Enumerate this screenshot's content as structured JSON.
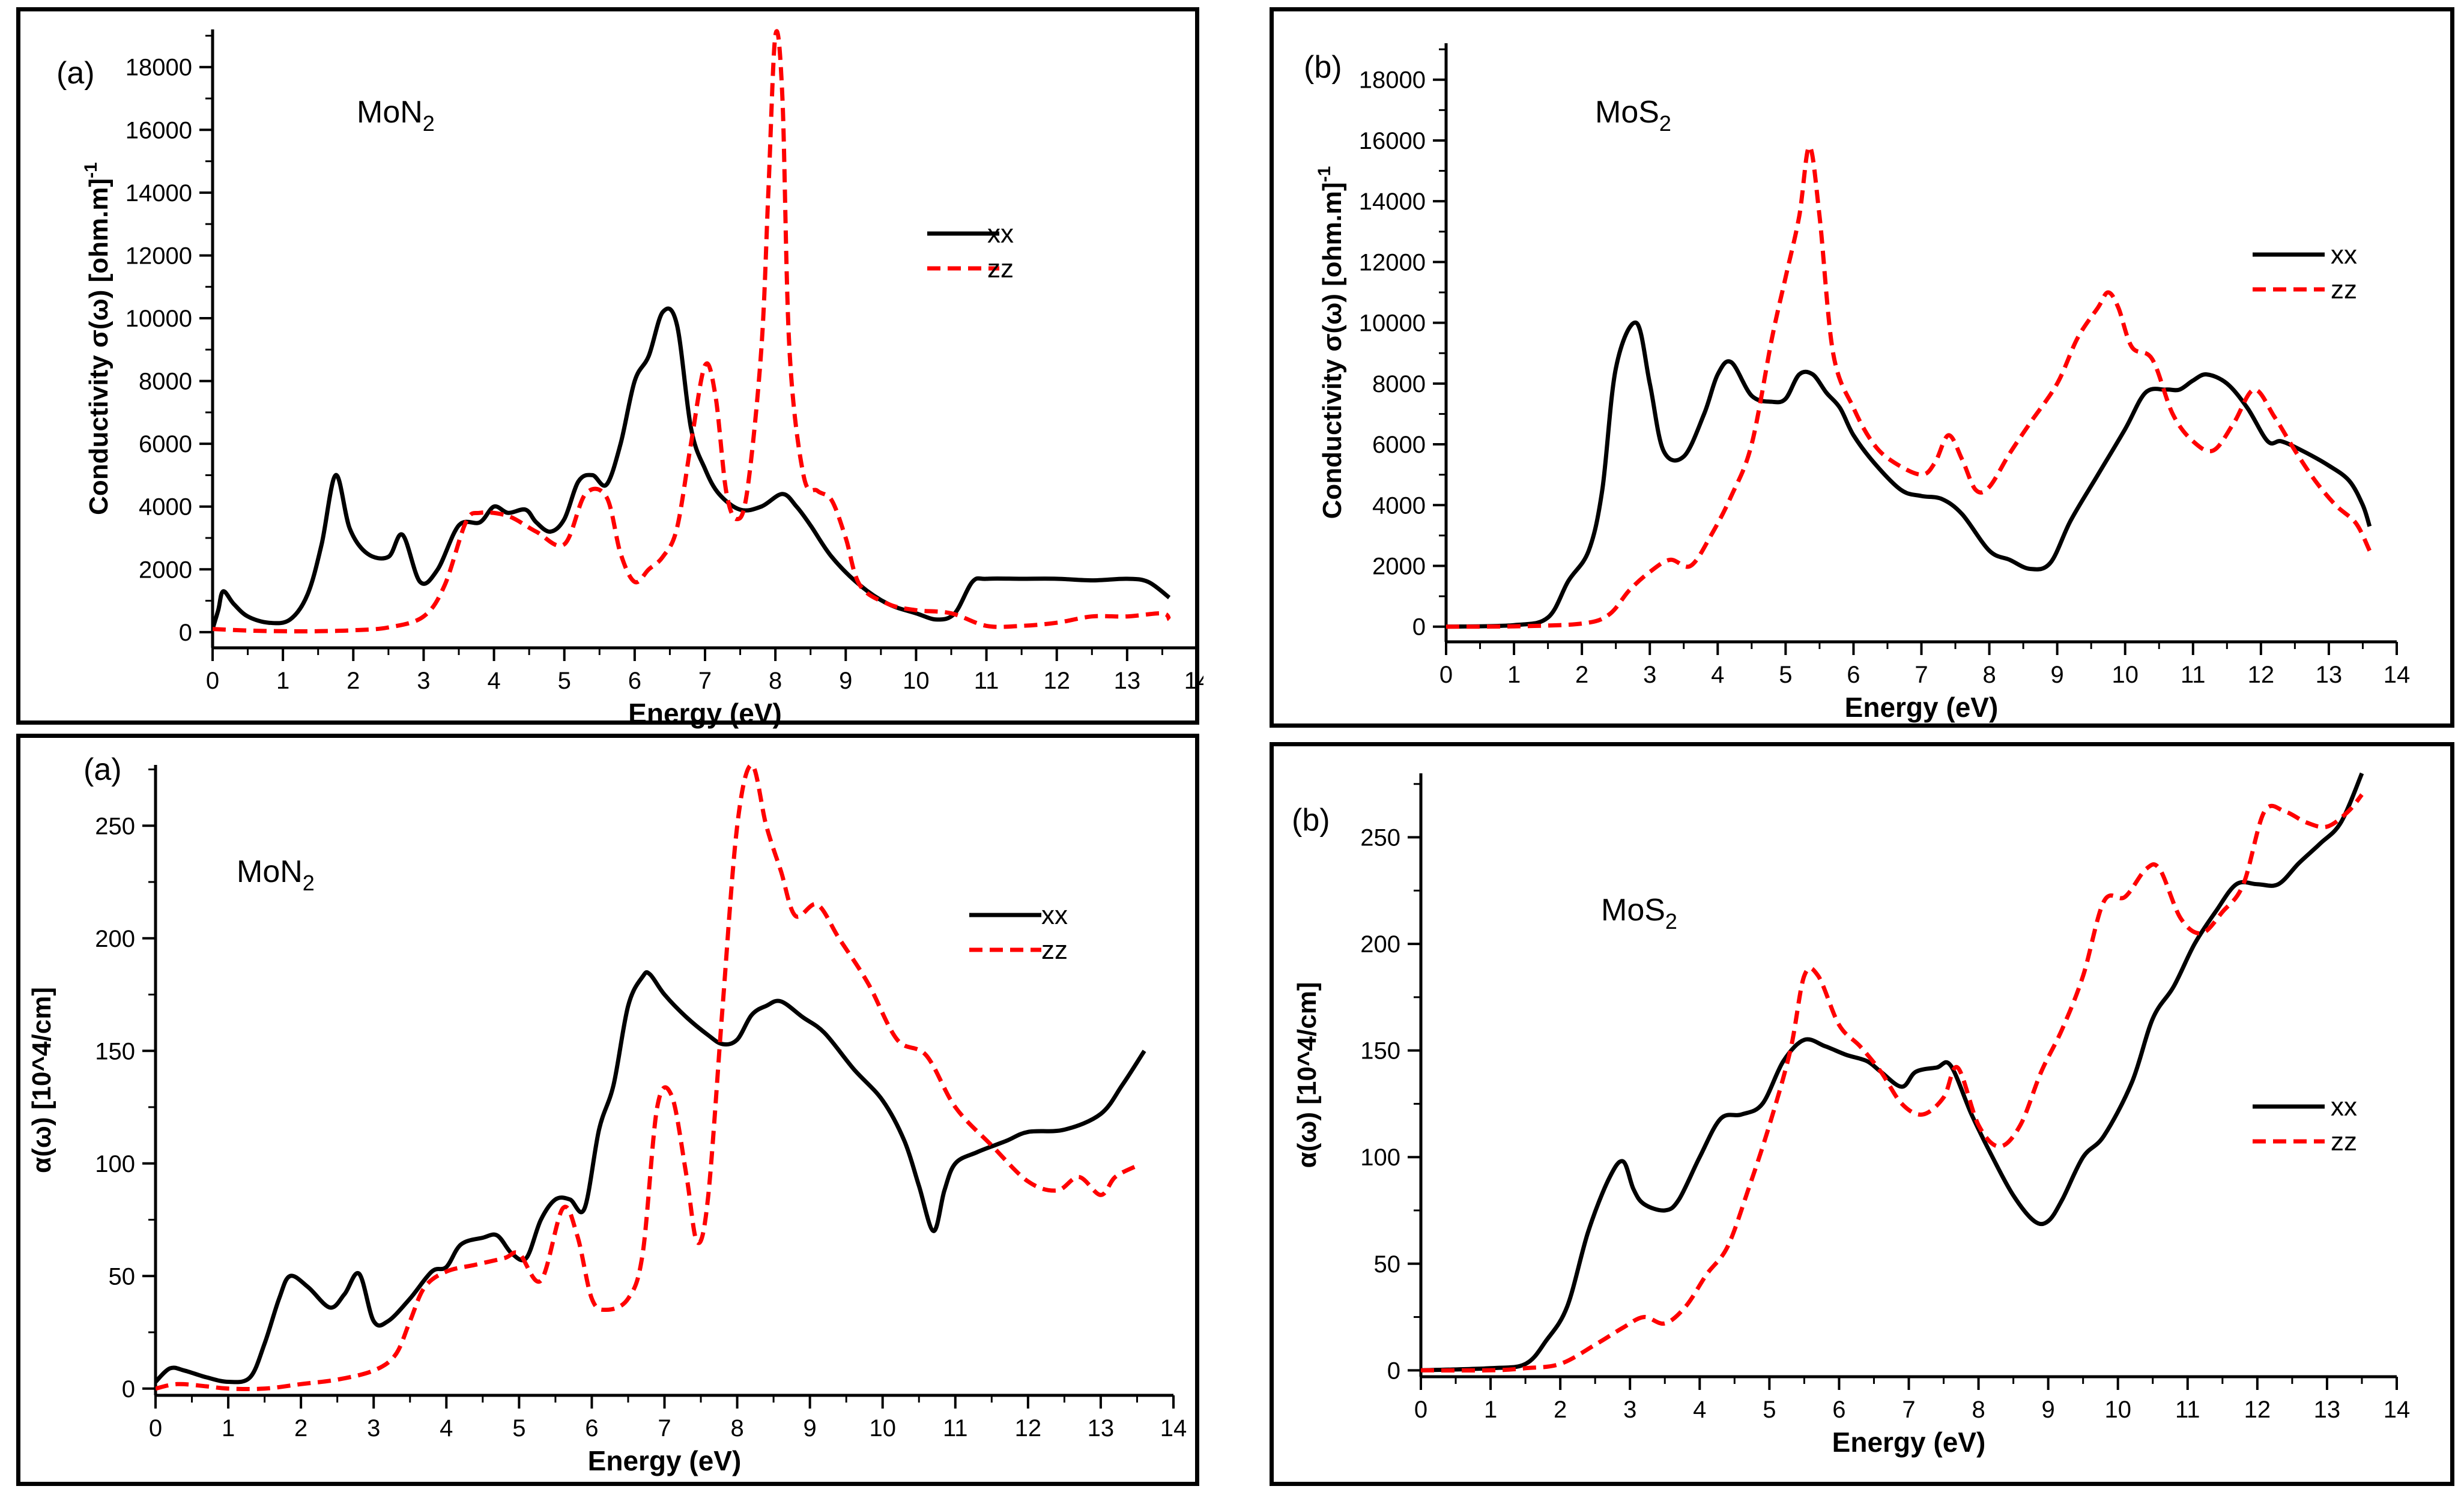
{
  "chart_data": [
    {
      "type": "line",
      "panel_label": "(a)",
      "material": "MoN",
      "material_sub": "2",
      "ylabel": "Conductivity σ(ω) [ohm.m]",
      "ylabel_sup": "-1",
      "xlabel": "Energy (eV)",
      "xlim": [
        0,
        14
      ],
      "ylim": [
        -500,
        19200
      ],
      "xticks": [
        0,
        1,
        2,
        3,
        4,
        5,
        6,
        7,
        8,
        9,
        10,
        11,
        12,
        13,
        14
      ],
      "yticks": [
        0,
        2000,
        4000,
        6000,
        8000,
        10000,
        12000,
        14000,
        16000,
        18000
      ],
      "legend_position": "right",
      "series": [
        {
          "name": "xx",
          "color": "#000000",
          "dash": "solid",
          "x": [
            0,
            0.08,
            0.15,
            0.3,
            0.5,
            0.8,
            1.1,
            1.35,
            1.55,
            1.75,
            1.95,
            2.2,
            2.5,
            2.7,
            2.95,
            3.2,
            3.5,
            3.8,
            4.0,
            4.2,
            4.45,
            4.6,
            4.8,
            5.0,
            5.2,
            5.4,
            5.6,
            5.8,
            6.0,
            6.2,
            6.4,
            6.6,
            6.8,
            7.0,
            7.2,
            7.5,
            7.8,
            8.1,
            8.3,
            8.5,
            8.8,
            9.2,
            9.6,
            10.0,
            10.3,
            10.55,
            10.8,
            11.0,
            11.5,
            12.0,
            12.5,
            13.0,
            13.3,
            13.6
          ],
          "values": [
            100,
            700,
            1300,
            900,
            500,
            300,
            400,
            1200,
            2800,
            5000,
            3300,
            2500,
            2400,
            3100,
            1600,
            2000,
            3400,
            3500,
            4000,
            3800,
            3900,
            3500,
            3200,
            3600,
            4800,
            5000,
            4700,
            6000,
            8000,
            8800,
            10200,
            9800,
            6500,
            5200,
            4400,
            3900,
            4000,
            4400,
            4000,
            3400,
            2400,
            1500,
            900,
            600,
            400,
            600,
            1600,
            1700,
            1700,
            1700,
            1650,
            1700,
            1600,
            1100
          ]
        },
        {
          "name": "zz",
          "color": "#ff0000",
          "dash": "dashed",
          "x": [
            0,
            0.5,
            1.0,
            1.5,
            2.0,
            2.5,
            3.0,
            3.3,
            3.6,
            3.8,
            4.2,
            4.6,
            5.0,
            5.3,
            5.6,
            5.8,
            6.0,
            6.2,
            6.4,
            6.6,
            6.8,
            7.0,
            7.15,
            7.3,
            7.45,
            7.6,
            7.8,
            7.9,
            8.0,
            8.1,
            8.2,
            8.4,
            8.6,
            8.8,
            9.0,
            9.2,
            9.6,
            10.0,
            10.5,
            11.0,
            11.5,
            12.0,
            12.5,
            13.0,
            13.5,
            13.6
          ],
          "values": [
            100,
            50,
            30,
            30,
            60,
            150,
            500,
            1500,
            3500,
            3800,
            3700,
            3200,
            2800,
            4400,
            4300,
            2500,
            1600,
            2000,
            2400,
            3300,
            6000,
            8500,
            7500,
            4500,
            3600,
            4500,
            9000,
            14000,
            19000,
            17000,
            9000,
            5000,
            4500,
            4200,
            3000,
            1500,
            900,
            700,
            600,
            200,
            200,
            300,
            500,
            500,
            600,
            400
          ]
        }
      ]
    },
    {
      "type": "line",
      "panel_label": "(b)",
      "material": "MoS",
      "material_sub": "2",
      "ylabel": "Conductivity σ(ω) [ohm.m]",
      "ylabel_sup": "-1",
      "xlabel": "Energy (eV)",
      "xlim": [
        0,
        14
      ],
      "ylim": [
        -500,
        19200
      ],
      "xticks": [
        0,
        1,
        2,
        3,
        4,
        5,
        6,
        7,
        8,
        9,
        10,
        11,
        12,
        13,
        14
      ],
      "yticks": [
        0,
        2000,
        4000,
        6000,
        8000,
        10000,
        12000,
        14000,
        16000,
        18000
      ],
      "legend_position": "right",
      "series": [
        {
          "name": "xx",
          "color": "#000000",
          "dash": "solid",
          "x": [
            0,
            1.0,
            1.5,
            1.8,
            2.1,
            2.3,
            2.5,
            2.8,
            3.0,
            3.2,
            3.5,
            3.8,
            4.0,
            4.2,
            4.5,
            4.8,
            5.0,
            5.2,
            5.4,
            5.6,
            5.8,
            6.0,
            6.3,
            6.7,
            7.0,
            7.3,
            7.6,
            8.0,
            8.3,
            8.6,
            8.9,
            9.2,
            9.6,
            10.0,
            10.3,
            10.6,
            10.8,
            11.0,
            11.2,
            11.5,
            11.8,
            12.1,
            12.3,
            12.6,
            13.0,
            13.3,
            13.5,
            13.6
          ],
          "values": [
            0,
            50,
            300,
            1500,
            2500,
            4500,
            8500,
            10000,
            8000,
            5800,
            5600,
            7000,
            8300,
            8700,
            7600,
            7400,
            7500,
            8300,
            8300,
            7700,
            7200,
            6300,
            5400,
            4500,
            4300,
            4200,
            3700,
            2500,
            2200,
            1900,
            2100,
            3500,
            5000,
            6500,
            7700,
            7800,
            7800,
            8100,
            8300,
            8000,
            7200,
            6100,
            6100,
            5800,
            5300,
            4800,
            4000,
            3300
          ]
        },
        {
          "name": "zz",
          "color": "#ff0000",
          "dash": "dashed",
          "x": [
            0,
            1.0,
            2.0,
            2.4,
            2.7,
            3.0,
            3.3,
            3.6,
            3.9,
            4.2,
            4.5,
            4.8,
            5.0,
            5.2,
            5.35,
            5.5,
            5.7,
            6.0,
            6.3,
            6.6,
            7.0,
            7.2,
            7.4,
            7.6,
            7.8,
            8.0,
            8.3,
            8.6,
            9.0,
            9.3,
            9.6,
            9.75,
            9.9,
            10.1,
            10.4,
            10.7,
            11.0,
            11.3,
            11.6,
            11.9,
            12.2,
            12.5,
            12.8,
            13.1,
            13.4,
            13.6
          ],
          "values": [
            0,
            10,
            100,
            400,
            1200,
            1800,
            2200,
            2000,
            3000,
            4300,
            6000,
            9500,
            11500,
            13500,
            15800,
            13500,
            9000,
            7200,
            6000,
            5400,
            5000,
            5400,
            6300,
            5500,
            4500,
            4600,
            5700,
            6700,
            8000,
            9500,
            10500,
            11000,
            10500,
            9200,
            8800,
            7000,
            6100,
            5800,
            6700,
            7800,
            6900,
            5800,
            4800,
            4000,
            3400,
            2500
          ]
        }
      ]
    },
    {
      "type": "line",
      "panel_label": "(a)",
      "material": "MoN",
      "material_sub": "2",
      "ylabel": "α(ω) [10^4/cm]",
      "xlabel": "Energy (eV)",
      "xlim": [
        0,
        14
      ],
      "ylim": [
        -3,
        277
      ],
      "xticks": [
        0,
        1,
        2,
        3,
        4,
        5,
        6,
        7,
        8,
        9,
        10,
        11,
        12,
        13,
        14
      ],
      "yticks": [
        0,
        50,
        100,
        150,
        200,
        250
      ],
      "legend_position": "right",
      "series": [
        {
          "name": "xx",
          "color": "#000000",
          "dash": "solid",
          "x": [
            0,
            0.2,
            0.4,
            0.7,
            1.0,
            1.3,
            1.5,
            1.7,
            1.85,
            2.1,
            2.4,
            2.6,
            2.8,
            3.0,
            3.2,
            3.5,
            3.8,
            4.0,
            4.2,
            4.5,
            4.7,
            4.9,
            5.1,
            5.3,
            5.5,
            5.7,
            5.9,
            6.1,
            6.3,
            6.5,
            6.7,
            6.8,
            7.0,
            7.3,
            7.6,
            7.8,
            8.0,
            8.2,
            8.4,
            8.6,
            8.9,
            9.2,
            9.6,
            10.0,
            10.3,
            10.5,
            10.7,
            10.85,
            11.0,
            11.3,
            11.7,
            12.0,
            12.5,
            13.0,
            13.3,
            13.6
          ],
          "values": [
            3,
            9,
            8,
            5,
            3,
            5,
            20,
            40,
            50,
            45,
            36,
            42,
            51,
            30,
            30,
            40,
            52,
            54,
            64,
            67,
            68,
            60,
            58,
            75,
            84,
            84,
            80,
            115,
            135,
            170,
            183,
            184,
            175,
            165,
            157,
            153,
            155,
            166,
            170,
            172,
            165,
            158,
            142,
            128,
            110,
            90,
            70,
            88,
            100,
            105,
            110,
            114,
            115,
            122,
            135,
            150
          ]
        },
        {
          "name": "zz",
          "color": "#ff0000",
          "dash": "dashed",
          "x": [
            0,
            0.3,
            0.7,
            1.0,
            1.5,
            2.0,
            2.5,
            3.0,
            3.3,
            3.5,
            3.7,
            4.0,
            4.4,
            4.8,
            5.0,
            5.3,
            5.6,
            5.8,
            6.0,
            6.2,
            6.5,
            6.7,
            6.9,
            7.1,
            7.3,
            7.45,
            7.6,
            7.8,
            8.0,
            8.2,
            8.4,
            8.6,
            8.8,
            9.1,
            9.4,
            9.8,
            10.2,
            10.6,
            11.0,
            11.5,
            12.0,
            12.4,
            12.7,
            13.0,
            13.2,
            13.5
          ],
          "values": [
            0,
            2,
            1,
            0,
            0,
            2,
            4,
            8,
            15,
            30,
            45,
            52,
            55,
            58,
            60,
            48,
            80,
            68,
            40,
            35,
            40,
            60,
            125,
            130,
            95,
            65,
            85,
            170,
            250,
            277,
            250,
            230,
            210,
            215,
            200,
            180,
            155,
            148,
            125,
            108,
            92,
            88,
            94,
            86,
            94,
            99
          ]
        }
      ]
    },
    {
      "type": "line",
      "panel_label": "(b)",
      "material": "MoS",
      "material_sub": "2",
      "ylabel": "α(ω) [10^4/cm]",
      "xlabel": "Energy (eV)",
      "xlim": [
        0,
        14
      ],
      "ylim": [
        -3,
        280
      ],
      "xticks": [
        0,
        1,
        2,
        3,
        4,
        5,
        6,
        7,
        8,
        9,
        10,
        11,
        12,
        13,
        14
      ],
      "yticks": [
        0,
        50,
        100,
        150,
        200,
        250
      ],
      "legend_position": "right",
      "series": [
        {
          "name": "xx",
          "color": "#000000",
          "dash": "solid",
          "x": [
            0,
            1.0,
            1.5,
            1.8,
            2.1,
            2.4,
            2.7,
            2.9,
            3.05,
            3.2,
            3.5,
            3.7,
            4.0,
            4.3,
            4.6,
            4.9,
            5.2,
            5.5,
            5.8,
            6.1,
            6.4,
            6.6,
            6.9,
            7.1,
            7.4,
            7.6,
            7.9,
            8.2,
            8.5,
            8.8,
            9.0,
            9.2,
            9.5,
            9.8,
            10.2,
            10.5,
            10.8,
            11.1,
            11.4,
            11.7,
            12.0,
            12.3,
            12.6,
            12.9,
            13.2,
            13.5
          ],
          "values": [
            0,
            1,
            3,
            14,
            30,
            65,
            90,
            98,
            85,
            78,
            75,
            80,
            100,
            118,
            120,
            125,
            145,
            155,
            152,
            148,
            145,
            140,
            133,
            140,
            142,
            143,
            120,
            100,
            82,
            70,
            70,
            80,
            100,
            110,
            135,
            165,
            180,
            200,
            215,
            228,
            228,
            228,
            238,
            247,
            257,
            280
          ]
        },
        {
          "name": "zz",
          "color": "#ff0000",
          "dash": "dashed",
          "x": [
            0,
            1.0,
            1.5,
            2.0,
            2.5,
            2.9,
            3.2,
            3.5,
            3.8,
            4.1,
            4.4,
            4.7,
            5.0,
            5.3,
            5.5,
            5.7,
            6.0,
            6.3,
            6.6,
            6.9,
            7.2,
            7.5,
            7.7,
            8.0,
            8.3,
            8.6,
            8.9,
            9.2,
            9.5,
            9.8,
            10.1,
            10.4,
            10.6,
            10.9,
            11.2,
            11.5,
            11.8,
            12.1,
            12.4,
            12.7,
            13.0,
            13.3,
            13.5
          ],
          "values": [
            0,
            0,
            1,
            3,
            12,
            20,
            25,
            22,
            30,
            45,
            58,
            85,
            115,
            150,
            185,
            185,
            162,
            152,
            140,
            125,
            120,
            128,
            142,
            115,
            105,
            115,
            140,
            160,
            185,
            220,
            222,
            235,
            235,
            212,
            205,
            215,
            228,
            262,
            262,
            257,
            255,
            262,
            270
          ]
        }
      ]
    }
  ]
}
